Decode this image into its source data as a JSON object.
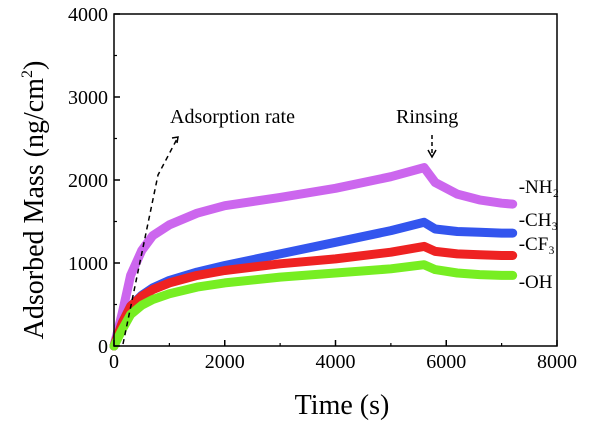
{
  "chart_data": {
    "type": "line",
    "title": "",
    "xlabel": "Time (s)",
    "ylabel_main": "Adsorbed Mass (ng/cm",
    "ylabel_sup": "2",
    "ylabel_close": ")",
    "xlim": [
      0,
      8000
    ],
    "ylim": [
      0,
      4000
    ],
    "x_ticks": [
      0,
      2000,
      4000,
      6000,
      8000
    ],
    "y_ticks": [
      0,
      1000,
      2000,
      3000,
      4000
    ],
    "x_tick_labels": [
      "0",
      "2000",
      "4000",
      "6000",
      "8000"
    ],
    "y_tick_labels": [
      "0",
      "1000",
      "2000",
      "3000",
      "4000"
    ],
    "grid": false,
    "legend": "none",
    "annotations": {
      "adsorption_rate": "Adsorption rate",
      "rinsing": "Rinsing"
    },
    "series": [
      {
        "name": "-NH₂",
        "color": "#cc66ee",
        "x": [
          0,
          150,
          300,
          500,
          700,
          1000,
          1500,
          2000,
          3000,
          4000,
          5000,
          5600,
          5800,
          6200,
          6600,
          7000,
          7200
        ],
        "y": [
          0,
          400,
          850,
          1150,
          1330,
          1460,
          1600,
          1690,
          1790,
          1900,
          2040,
          2150,
          1970,
          1830,
          1760,
          1720,
          1710
        ]
      },
      {
        "name": "-CH₃",
        "color": "#3355ee",
        "x": [
          0,
          150,
          300,
          500,
          700,
          1000,
          1500,
          2000,
          3000,
          4000,
          5000,
          5600,
          5800,
          6200,
          6600,
          7000,
          7200
        ],
        "y": [
          0,
          280,
          480,
          610,
          700,
          790,
          890,
          970,
          1110,
          1250,
          1390,
          1490,
          1410,
          1380,
          1370,
          1360,
          1360
        ]
      },
      {
        "name": "-CF₃",
        "color": "#ee2222",
        "x": [
          0,
          150,
          300,
          500,
          700,
          1000,
          1500,
          2000,
          3000,
          4000,
          5000,
          5600,
          5800,
          6200,
          6600,
          7000,
          7200
        ],
        "y": [
          0,
          280,
          480,
          600,
          680,
          760,
          850,
          910,
          990,
          1050,
          1130,
          1200,
          1140,
          1110,
          1100,
          1090,
          1090
        ]
      },
      {
        "name": "-OH",
        "color": "#77ee22",
        "x": [
          0,
          150,
          300,
          500,
          700,
          1000,
          1500,
          2000,
          3000,
          4000,
          5000,
          5600,
          5800,
          6200,
          6600,
          7000,
          7200
        ],
        "y": [
          0,
          200,
          380,
          490,
          560,
          630,
          710,
          760,
          830,
          880,
          930,
          980,
          920,
          880,
          860,
          850,
          850
        ]
      }
    ]
  }
}
